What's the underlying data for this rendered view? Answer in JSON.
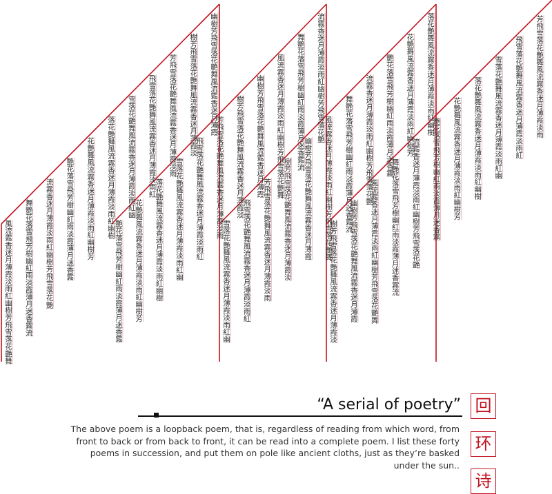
{
  "poem_columns": [
    "風流霧香迷月薄霞淡雨紅幽樹芳飛雪落花艷舞",
    "舞艷花落雪飛芳樹幽紅雨淡霞薄月迷香霧流",
    "流霧香迷月薄霞淡雨紅幽樹芳飛雪落花艷",
    "艷花落雪飛芳樹幽紅雨淡霞薄月迷香霧",
    "花艷舞風流霧香迷月薄霞淡雨紅幽樹芳",
    "落花艷舞風流霧香迷月薄霞淡雨紅幽樹",
    "雪落花艷舞風流霧香迷月薄霞淡雨紅幽",
    "飛雪落花艷舞風流霧香迷月薄霞淡雨紅",
    "芳飛雪落花艷舞風流霧香迷月薄霞淡雨",
    "樹芳飛雪落花艷舞風流霧香迷月薄霞淡",
    "幽樹芳飛雪落花艷舞風流霧香迷月薄霞"
  ],
  "title": "“A serial of poetry”",
  "description": "The above poem is a loopback poem, that is, regardless of reading from which word, from front to back or from back to front, it can be read into a complete poem. I list these forty poems in succession, and put them on pole like ancient cloths, just as they’re basked under the sun..",
  "seal_chars": [
    "回",
    "环",
    "诗"
  ],
  "colors": {
    "pole": "#c1121f",
    "text": "#333333",
    "thread": "#d04a55"
  }
}
